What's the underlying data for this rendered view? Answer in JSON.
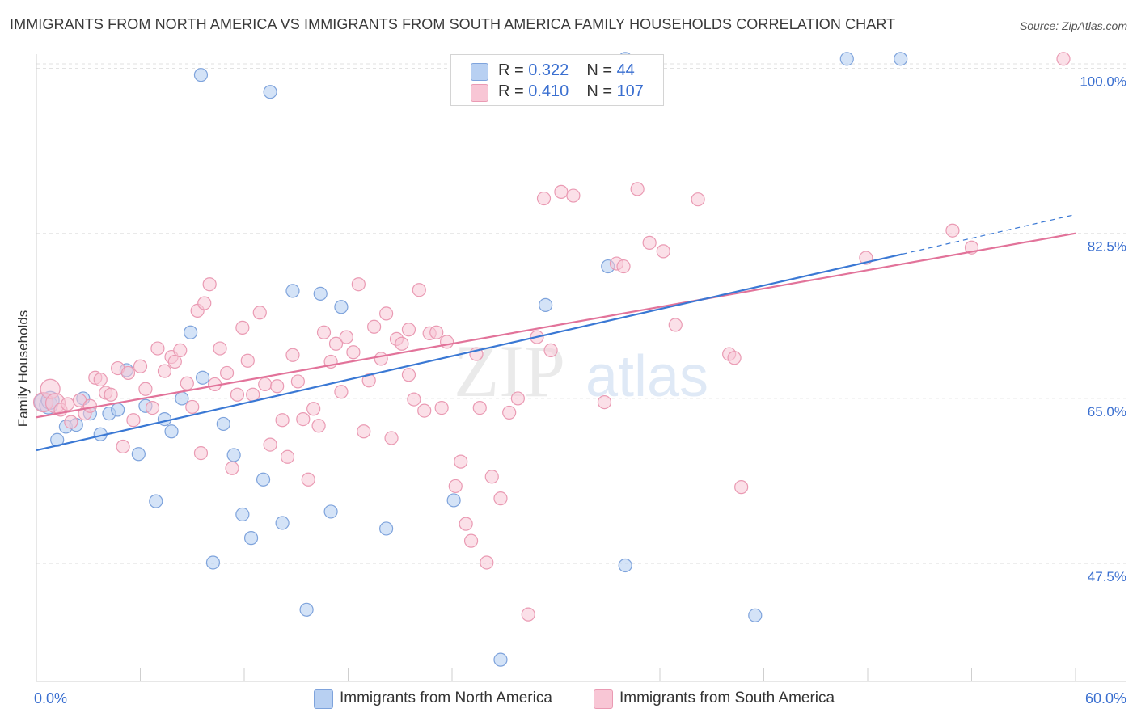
{
  "title": "IMMIGRANTS FROM NORTH AMERICA VS IMMIGRANTS FROM SOUTH AMERICA FAMILY HOUSEHOLDS CORRELATION CHART",
  "source": "Source: ZipAtlas.com",
  "watermark": {
    "zip": "ZIP",
    "atlas": "atlas"
  },
  "legend": {
    "north": {
      "r_label": "R = ",
      "r_value": "0.322",
      "n_label": "N = ",
      "n_value": "44"
    },
    "south": {
      "r_label": "R = ",
      "r_value": "0.410",
      "n_label": "N = ",
      "n_value": "107"
    }
  },
  "bottom_legend": {
    "north": "Immigrants from North America",
    "south": "Immigrants from South America"
  },
  "colors": {
    "north_fill": "#b8d0f2",
    "north_stroke": "#7ea3dc",
    "north_line": "#3a78d4",
    "south_fill": "#f8c6d5",
    "south_stroke": "#ea9ab3",
    "south_line": "#e2739a",
    "tick_label": "#3a6fd0",
    "grid": "#e2e2e2"
  },
  "chart_data": {
    "type": "scatter",
    "title": "IMMIGRANTS FROM NORTH AMERICA VS IMMIGRANTS FROM SOUTH AMERICA FAMILY HOUSEHOLDS CORRELATION CHART",
    "xlabel": "",
    "ylabel": "Family Households",
    "xlim": [
      0,
      60
    ],
    "ylim": [
      35,
      101.5
    ],
    "x_tick_labels": [
      "0.0%",
      "60.0%"
    ],
    "y_ticks": [
      47.5,
      65.0,
      82.5,
      100.0
    ],
    "y_tick_labels": [
      "47.5%",
      "65.0%",
      "82.5%",
      "100.0%"
    ],
    "grid": true,
    "legend_position": "top-center",
    "series": [
      {
        "name": "Immigrants from North America",
        "r": 0.322,
        "n": 44,
        "trend": {
          "x": [
            0,
            50
          ],
          "y": [
            59.5,
            80.3
          ],
          "dashed_extension": {
            "x": [
              50,
              60
            ],
            "y": [
              80.3,
              84.5
            ]
          }
        },
        "points": [
          [
            0.4,
            64.6
          ],
          [
            0.7,
            64.3
          ],
          [
            0.8,
            64.8
          ],
          [
            1.2,
            60.6
          ],
          [
            1.7,
            62.0
          ],
          [
            2.3,
            62.2
          ],
          [
            2.7,
            65.0
          ],
          [
            3.1,
            63.4
          ],
          [
            3.7,
            61.2
          ],
          [
            4.2,
            63.4
          ],
          [
            4.7,
            63.8
          ],
          [
            5.2,
            68.0
          ],
          [
            5.9,
            59.1
          ],
          [
            6.3,
            64.2
          ],
          [
            6.9,
            54.1
          ],
          [
            7.4,
            62.8
          ],
          [
            7.8,
            61.5
          ],
          [
            8.4,
            65.0
          ],
          [
            8.9,
            72.0
          ],
          [
            9.6,
            67.2
          ],
          [
            10.2,
            47.6
          ],
          [
            10.8,
            62.3
          ],
          [
            11.4,
            59.0
          ],
          [
            11.9,
            52.7
          ],
          [
            12.4,
            50.2
          ],
          [
            13.1,
            56.4
          ],
          [
            14.2,
            51.8
          ],
          [
            14.8,
            76.4
          ],
          [
            15.6,
            42.6
          ],
          [
            16.4,
            76.1
          ],
          [
            17.0,
            53.0
          ],
          [
            17.6,
            74.7
          ],
          [
            20.2,
            51.2
          ],
          [
            24.1,
            54.2
          ],
          [
            26.8,
            37.3
          ],
          [
            29.4,
            74.9
          ],
          [
            33.0,
            79.0
          ],
          [
            34.0,
            47.3
          ],
          [
            41.5,
            42.0
          ],
          [
            46.8,
            101.0
          ],
          [
            49.9,
            101.0
          ],
          [
            9.5,
            99.3
          ],
          [
            13.5,
            97.5
          ],
          [
            34.0,
            101.0
          ]
        ]
      },
      {
        "name": "Immigrants from South America",
        "r": 0.41,
        "n": 107,
        "trend": {
          "x": [
            0,
            60
          ],
          "y": [
            63.0,
            82.5
          ]
        },
        "points": [
          [
            0.4,
            64.6
          ],
          [
            0.8,
            66.0
          ],
          [
            1.1,
            64.5
          ],
          [
            1.4,
            63.8
          ],
          [
            1.8,
            64.4
          ],
          [
            2.0,
            62.5
          ],
          [
            2.5,
            64.8
          ],
          [
            2.8,
            63.4
          ],
          [
            3.1,
            64.2
          ],
          [
            3.4,
            67.2
          ],
          [
            3.7,
            67.0
          ],
          [
            4.0,
            65.6
          ],
          [
            4.3,
            65.4
          ],
          [
            4.7,
            68.2
          ],
          [
            5.0,
            59.9
          ],
          [
            5.3,
            67.7
          ],
          [
            5.6,
            62.7
          ],
          [
            6.0,
            68.4
          ],
          [
            6.3,
            66.0
          ],
          [
            6.7,
            64.0
          ],
          [
            7.0,
            70.3
          ],
          [
            7.4,
            67.9
          ],
          [
            7.8,
            69.4
          ],
          [
            8.0,
            68.9
          ],
          [
            8.3,
            70.1
          ],
          [
            8.7,
            66.6
          ],
          [
            9.0,
            64.1
          ],
          [
            9.3,
            74.3
          ],
          [
            9.5,
            59.2
          ],
          [
            9.7,
            75.1
          ],
          [
            10.0,
            77.1
          ],
          [
            10.3,
            66.5
          ],
          [
            10.6,
            70.3
          ],
          [
            11.0,
            67.7
          ],
          [
            11.3,
            57.6
          ],
          [
            11.6,
            65.4
          ],
          [
            11.9,
            72.5
          ],
          [
            12.2,
            69.0
          ],
          [
            12.5,
            65.4
          ],
          [
            12.9,
            74.1
          ],
          [
            13.2,
            66.5
          ],
          [
            13.5,
            60.1
          ],
          [
            13.9,
            66.3
          ],
          [
            14.2,
            62.7
          ],
          [
            14.5,
            58.8
          ],
          [
            14.8,
            69.6
          ],
          [
            15.1,
            66.8
          ],
          [
            15.4,
            62.8
          ],
          [
            15.7,
            56.4
          ],
          [
            16.0,
            63.9
          ],
          [
            16.3,
            62.1
          ],
          [
            16.6,
            72.0
          ],
          [
            17.0,
            68.9
          ],
          [
            17.3,
            70.8
          ],
          [
            17.6,
            65.7
          ],
          [
            17.9,
            71.5
          ],
          [
            18.3,
            69.9
          ],
          [
            18.6,
            77.1
          ],
          [
            18.9,
            61.5
          ],
          [
            19.2,
            66.9
          ],
          [
            19.5,
            72.6
          ],
          [
            19.9,
            69.2
          ],
          [
            20.2,
            74.0
          ],
          [
            20.5,
            60.8
          ],
          [
            20.8,
            71.3
          ],
          [
            21.1,
            70.8
          ],
          [
            21.5,
            72.3
          ],
          [
            21.8,
            64.9
          ],
          [
            22.1,
            76.5
          ],
          [
            22.4,
            63.7
          ],
          [
            22.7,
            71.9
          ],
          [
            23.1,
            72.0
          ],
          [
            23.4,
            64.0
          ],
          [
            23.7,
            71.0
          ],
          [
            24.2,
            55.7
          ],
          [
            24.5,
            58.3
          ],
          [
            24.8,
            51.7
          ],
          [
            25.1,
            49.9
          ],
          [
            25.4,
            69.7
          ],
          [
            26.0,
            47.6
          ],
          [
            26.3,
            56.7
          ],
          [
            26.8,
            54.4
          ],
          [
            27.3,
            63.5
          ],
          [
            27.8,
            65.0
          ],
          [
            28.4,
            42.1
          ],
          [
            28.9,
            71.5
          ],
          [
            29.3,
            86.2
          ],
          [
            29.7,
            70.1
          ],
          [
            30.3,
            86.9
          ],
          [
            32.8,
            64.6
          ],
          [
            33.5,
            79.3
          ],
          [
            33.9,
            79.0
          ],
          [
            34.7,
            87.2
          ],
          [
            35.4,
            81.5
          ],
          [
            36.2,
            80.6
          ],
          [
            36.9,
            72.8
          ],
          [
            38.2,
            86.1
          ],
          [
            40.0,
            69.7
          ],
          [
            40.7,
            55.6
          ],
          [
            40.3,
            69.3
          ],
          [
            47.9,
            79.9
          ],
          [
            52.9,
            82.8
          ],
          [
            54.0,
            81.0
          ],
          [
            59.3,
            101.0
          ],
          [
            31.0,
            86.5
          ],
          [
            21.5,
            67.5
          ],
          [
            25.6,
            64.0
          ]
        ]
      }
    ]
  }
}
